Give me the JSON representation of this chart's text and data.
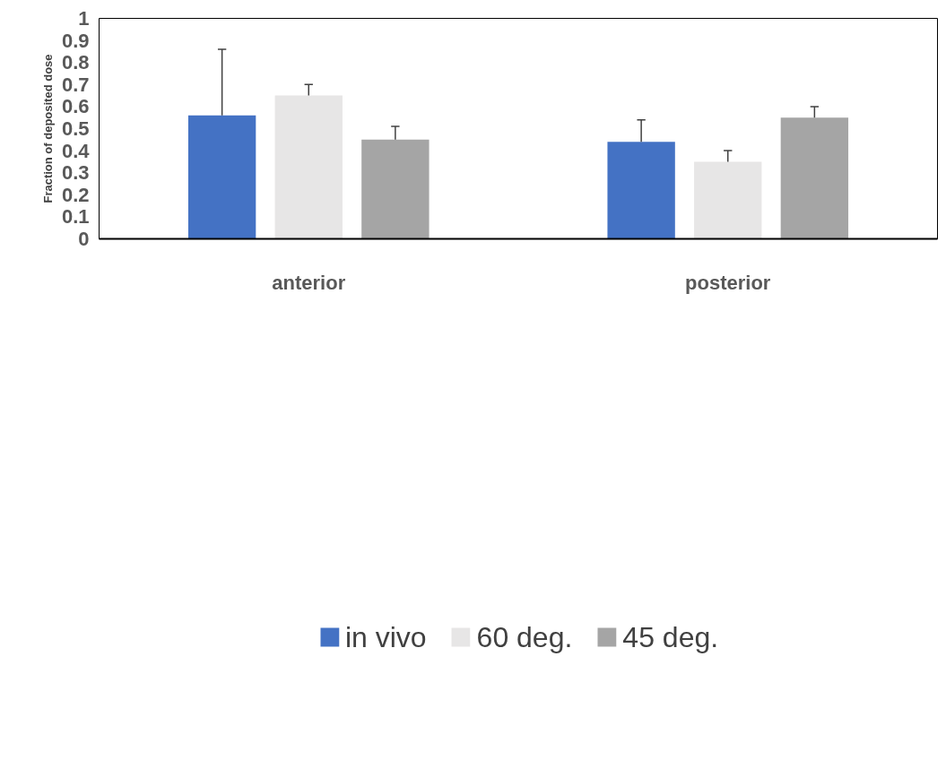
{
  "chart_data": {
    "type": "bar",
    "ylabel": "Fraction of deposited dose",
    "categories": [
      "anterior",
      "posterior"
    ],
    "series": [
      {
        "name": "in vivo",
        "color": "#4472c4",
        "values": [
          0.56,
          0.44
        ],
        "errors": [
          [
            0.56,
            0.86
          ],
          [
            0.44,
            0.54
          ]
        ]
      },
      {
        "name": "60 deg.",
        "color": "#e7e6e6",
        "values": [
          0.65,
          0.35
        ],
        "errors": [
          [
            0.65,
            0.7
          ],
          [
            0.35,
            0.4
          ]
        ]
      },
      {
        "name": "45 deg.",
        "color": "#a5a5a5",
        "values": [
          0.45,
          0.55
        ],
        "errors": [
          [
            0.45,
            0.51
          ],
          [
            0.55,
            0.6
          ]
        ]
      }
    ],
    "ylim": [
      0,
      1
    ],
    "yticks": [
      0,
      0.1,
      0.2,
      0.3,
      0.4,
      0.5,
      0.6,
      0.7,
      0.8,
      0.9,
      1
    ],
    "grid": false,
    "legend": "bottom"
  }
}
